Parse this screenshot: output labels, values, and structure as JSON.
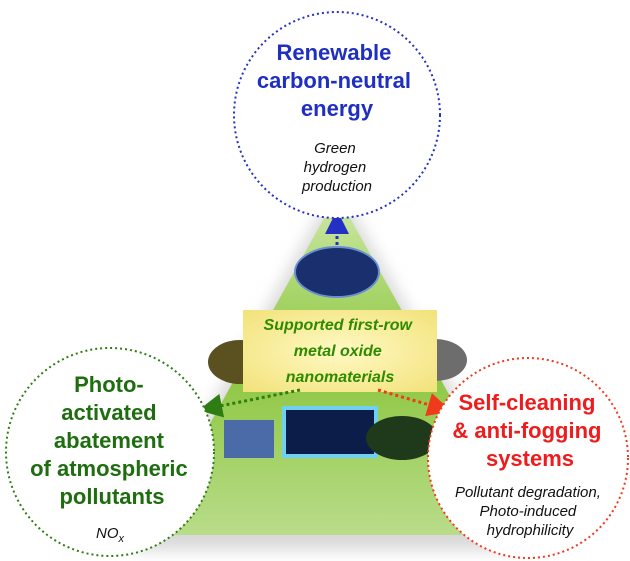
{
  "nodes": [
    {
      "title_lines": [
        "Renewable",
        "carbon-neutral",
        "energy"
      ],
      "subtitle_lines": [
        "Green",
        "hydrogen",
        "production"
      ]
    },
    {
      "title_lines": [
        "Photo-",
        "activated",
        "abatement",
        "of atmospheric",
        "pollutants"
      ],
      "subtitle_lines": [
        "NO"
      ],
      "subtitle_subscript": "x"
    },
    {
      "title_lines": [
        "Self-cleaning",
        "& anti-fogging",
        "systems"
      ],
      "subtitle_lines": [
        "Pollutant degradation,",
        "Photo-induced",
        "hydrophilicity"
      ]
    }
  ],
  "center": {
    "lines": [
      "Supported first-row",
      "metal oxide",
      "nanomaterials"
    ]
  }
}
